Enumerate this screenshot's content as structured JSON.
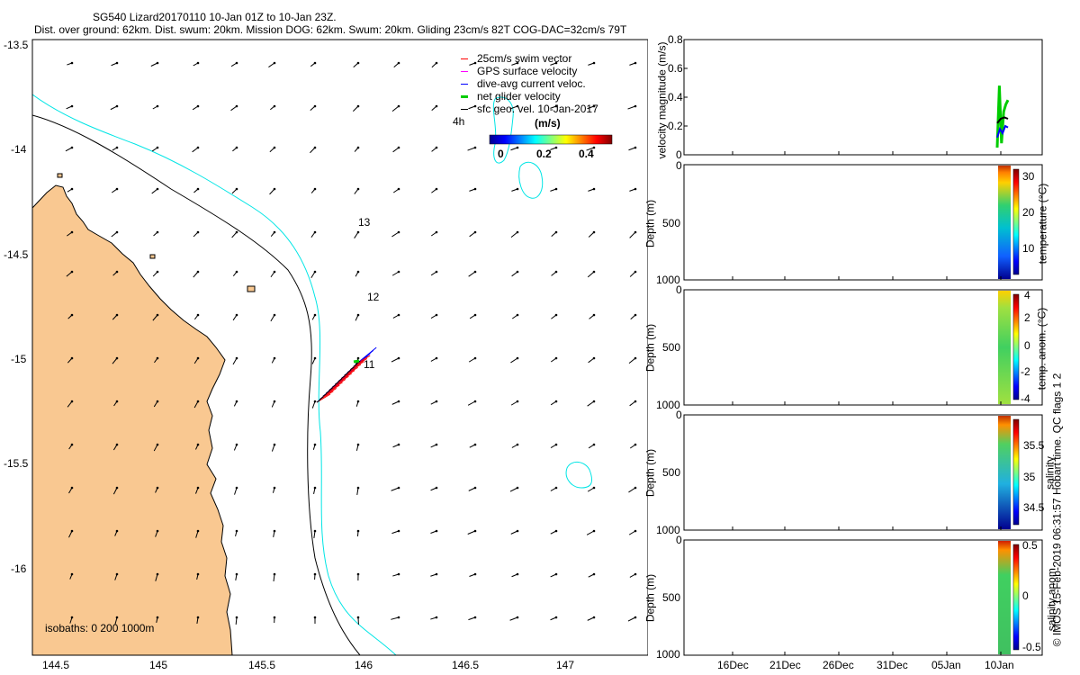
{
  "header": {
    "title": "SG540 Lizard20170110 10-Jan 01Z to 10-Jan 23Z.",
    "subtitle": "Dist. over ground: 62km. Dist. swum: 20km. Mission DOG: 62km. Swum: 20km. Gliding 23cm/s 82T COG-DAC=32cm/s 79T"
  },
  "footer_stamp": "© IMOS 15-Feb-2019 06:31:57 Hobart time. QC flags 1  2",
  "colors": {
    "land": "#f9c891",
    "shelf_isobath": "#00e5e5",
    "deep_isobath": "#000000",
    "swim_vector": "#ff0000",
    "gps_surface": "#ff00ff",
    "dive_avg": "#0000ff",
    "net_glider": "#00cc00",
    "sfc_geo": "#000000"
  },
  "chart_data": [
    {
      "type": "map",
      "x_ticks": [
        "144.5",
        "145",
        "145.5",
        "146",
        "146.5",
        "147"
      ],
      "y_ticks": [
        "-13.5",
        "-14",
        "-14.5",
        "-15",
        "-15.5",
        "-16"
      ],
      "xlim": [
        144.4,
        147.45
      ],
      "ylim": [
        -16.4,
        -13.45
      ],
      "legend": {
        "position": "top-right",
        "entries": [
          {
            "label": "25cm/s swim vector",
            "color": "#ff0000"
          },
          {
            "label": "GPS surface velocity",
            "color": "#ff00ff"
          },
          {
            "label": "dive-avg current veloc.",
            "color": "#0000ff"
          },
          {
            "label": "net glider velocity",
            "color": "#00cc00"
          },
          {
            "label": "sfc geo. vel. 10-Jan-2017",
            "color": "#000000"
          }
        ]
      },
      "colorbar": {
        "title": "(m/s)",
        "ticks": [
          "0",
          "0.2",
          "0.4"
        ],
        "range": [
          0,
          0.5
        ]
      },
      "isobaths_label": "isobaths: 0   200  1000m",
      "track_labels": [
        "4h",
        "13",
        "12",
        "11"
      ]
    },
    {
      "type": "line",
      "ylabel": "velocity magnitude (m/s)",
      "ylim": [
        0,
        0.8
      ],
      "y_ticks": [
        "0",
        "0.2",
        "0.4",
        "0.6",
        "0.8"
      ],
      "x_ticks": [
        "16Dec",
        "21Dec",
        "26Dec",
        "31Dec",
        "05Jan",
        "10Jan"
      ],
      "series": [
        {
          "color": "#00cc00",
          "values": [
            0.05,
            0.48,
            0.08,
            0.3,
            0.35,
            0.38
          ]
        },
        {
          "color": "#0000ff",
          "values": [
            0.12,
            0.18,
            0.15,
            0.2,
            0.19
          ]
        },
        {
          "color": "#000000",
          "values": [
            0.22,
            0.25,
            0.26,
            0.25
          ]
        }
      ]
    },
    {
      "type": "heatmap",
      "ylabel": "Depth (m)",
      "y_ticks": [
        "0",
        "500",
        "1000"
      ],
      "colorbar_label": "temperature (°C)",
      "colorbar_ticks": [
        "30",
        "20",
        "10"
      ],
      "clim": [
        5,
        32
      ]
    },
    {
      "type": "heatmap",
      "ylabel": "Depth (m)",
      "y_ticks": [
        "0",
        "500",
        "1000"
      ],
      "colorbar_label": "temp. anom. (°C)",
      "colorbar_ticks": [
        "4",
        "2",
        "0",
        "-2",
        "-4"
      ],
      "clim": [
        -4,
        4
      ]
    },
    {
      "type": "heatmap",
      "ylabel": "Depth (m)",
      "y_ticks": [
        "0",
        "500",
        "1000"
      ],
      "colorbar_label": "salinity",
      "colorbar_ticks": [
        "35.5",
        "35",
        "34.5"
      ],
      "clim": [
        34.3,
        35.9
      ]
    },
    {
      "type": "heatmap",
      "ylabel": "Depth (m)",
      "y_ticks": [
        "0",
        "500",
        "1000"
      ],
      "colorbar_label": "salinity anom.",
      "colorbar_ticks": [
        "0.5",
        "0",
        "-0.5"
      ],
      "clim": [
        -0.5,
        0.5
      ]
    }
  ]
}
